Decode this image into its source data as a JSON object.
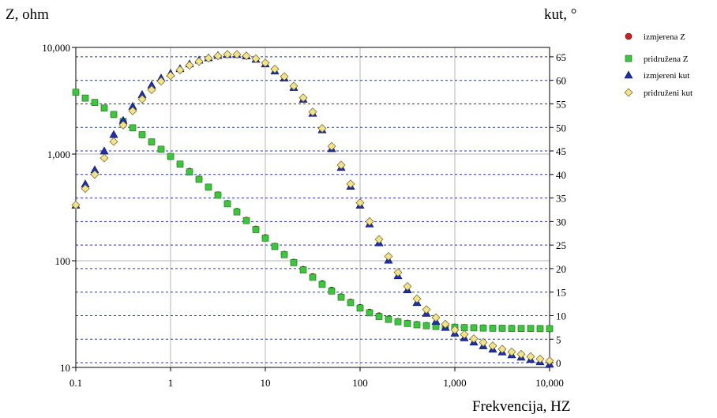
{
  "chart_data": {
    "type": "scatter",
    "title": "",
    "xlabel": "Frekvencija, HZ",
    "ylabel_left": "Z, ohm",
    "ylabel_right": "kut, °",
    "x_scale": "log",
    "xlim": [
      0.1,
      10000
    ],
    "y_left_scale": "log",
    "y_left_lim": [
      10,
      10000
    ],
    "y_right_lim": [
      -1,
      67
    ],
    "x_ticks": [
      "0.1",
      "1",
      "10",
      "100",
      "1,000",
      "10,000"
    ],
    "y_left_ticks": [
      "10",
      "100",
      "1,000",
      "10,000"
    ],
    "y_right_ticks": [
      "0",
      "5",
      "10",
      "15",
      "20",
      "25",
      "30",
      "35",
      "40",
      "45",
      "50",
      "55",
      "60",
      "65"
    ],
    "grid": {
      "x": "solid gray at decades",
      "y": "dashed blue at right-axis ticks"
    },
    "legend_position": "right",
    "colors": {
      "izmjerena_z": "#cc1f1f",
      "pridruzena_z": "#3cc63c",
      "izmjereni_kut": "#1f2fa8",
      "pridruzeni_kut": "#f2e38a",
      "dashed_grid": "#2233cc",
      "solid_grid": "#b5b5b5"
    },
    "x": [
      0.1,
      0.1259,
      0.1585,
      0.1995,
      0.2512,
      0.3162,
      0.3981,
      0.5012,
      0.631,
      0.7943,
      1,
      1.259,
      1.585,
      1.995,
      2.512,
      3.162,
      3.981,
      5.012,
      6.31,
      7.943,
      10,
      12.59,
      15.85,
      19.95,
      25.12,
      31.62,
      39.81,
      50.12,
      63.1,
      79.43,
      100,
      125.9,
      158.5,
      199.5,
      251.2,
      316.2,
      398.1,
      501.2,
      631,
      794.3,
      1000,
      1259,
      1585,
      1995,
      2512,
      3162,
      3981,
      5012,
      6310,
      7943,
      10000
    ],
    "series": [
      {
        "name": "izmjerena Z",
        "axis": "left",
        "values": [
          3800,
          3350,
          3050,
          2700,
          2350,
          2020,
          1760,
          1520,
          1300,
          1110,
          950,
          805,
          690,
          585,
          490,
          415,
          345,
          290,
          240,
          198,
          165,
          137,
          115,
          97,
          83,
          71,
          61,
          53,
          46,
          41,
          36.5,
          33,
          30.5,
          28.5,
          27,
          26,
          25.3,
          24.8,
          24.4,
          24.1,
          23.9,
          23.7,
          23.6,
          23.5,
          23.4,
          23.3,
          23.3,
          23.2,
          23.2,
          23.2,
          23.1
        ]
      },
      {
        "name": "pridružena Z",
        "axis": "left",
        "values": [
          3800,
          3350,
          3050,
          2700,
          2350,
          2020,
          1760,
          1520,
          1300,
          1110,
          950,
          805,
          680,
          580,
          490,
          412,
          342,
          287,
          238,
          196,
          163,
          136,
          114,
          96,
          82,
          70,
          60,
          52,
          45.5,
          40.5,
          36,
          32.5,
          30,
          28.2,
          26.8,
          25.8,
          25.1,
          24.6,
          24.2,
          24,
          23.8,
          23.6,
          23.5,
          23.4,
          23.3,
          23.3,
          23.2,
          23.2,
          23.2,
          23.1,
          23.1
        ]
      },
      {
        "name": "izmjereni kut",
        "axis": "right",
        "values": [
          33.5,
          38,
          41,
          45,
          48.5,
          51.5,
          54.5,
          57,
          59,
          60.5,
          61.5,
          62.5,
          63.5,
          64.3,
          64.8,
          65.3,
          65.5,
          65.5,
          65.2,
          64.5,
          63.5,
          62,
          60.5,
          58.5,
          56,
          53,
          49.5,
          45.5,
          41.5,
          37.5,
          33.5,
          29.5,
          25.5,
          21.8,
          18.5,
          15.5,
          12.8,
          10.5,
          8.8,
          7.5,
          6.3,
          5.3,
          4.4,
          3.6,
          2.9,
          2.3,
          1.7,
          1.2,
          0.7,
          0.2,
          -0.3
        ]
      },
      {
        "name": "pridruženi kut",
        "axis": "right",
        "values": [
          33.5,
          37,
          40,
          43.5,
          47,
          50.5,
          53.5,
          56,
          58,
          59.8,
          61,
          62.2,
          63.2,
          64,
          64.7,
          65.2,
          65.5,
          65.5,
          65.2,
          64.6,
          63.7,
          62.4,
          60.8,
          58.8,
          56.3,
          53.3,
          49.8,
          46,
          42,
          38,
          34,
          30,
          26.2,
          22.6,
          19.2,
          16.2,
          13.6,
          11.3,
          9.6,
          8.2,
          7,
          6,
          5.1,
          4.3,
          3.6,
          2.9,
          2.3,
          1.8,
          1.3,
          0.8,
          0.4
        ]
      }
    ]
  }
}
